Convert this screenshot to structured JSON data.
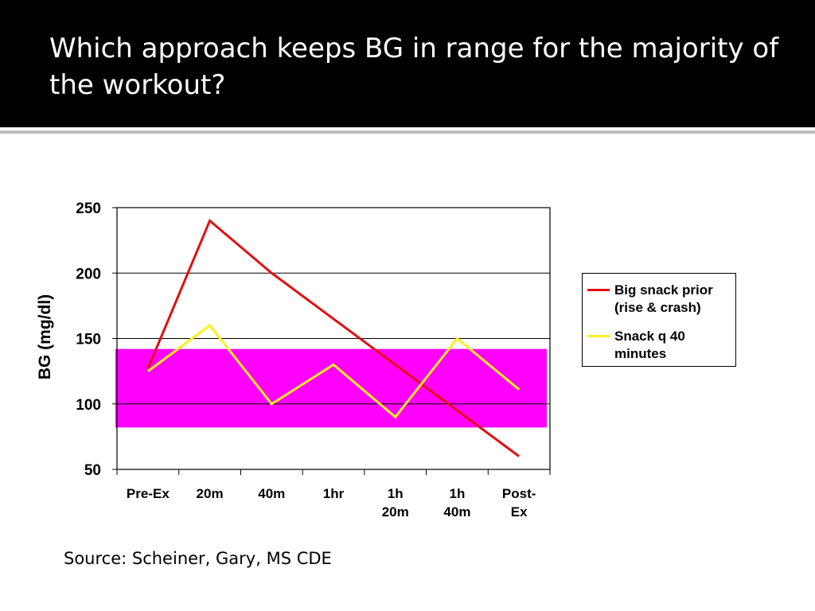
{
  "slide": {
    "title": "Which approach keeps BG in range for the majority of the workout?",
    "source": "Source:  Scheiner, Gary, MS CDE"
  },
  "chart_data": {
    "type": "line",
    "title": "",
    "xlabel": "",
    "ylabel": "BG (mg/dl)",
    "ylim": [
      50,
      250
    ],
    "yticks": [
      50,
      100,
      150,
      200,
      250
    ],
    "grid": true,
    "legend_position": "right",
    "categories": [
      [
        "Pre-Ex"
      ],
      [
        "20m"
      ],
      [
        "40m"
      ],
      [
        "1hr"
      ],
      [
        "1h",
        "20m"
      ],
      [
        "1h",
        "40m"
      ],
      [
        "Post-",
        "Ex"
      ]
    ],
    "target_range": {
      "low": 82,
      "high": 142,
      "color": "#ff00ff"
    },
    "series": [
      {
        "name": "Big snack prior (rise & crash)",
        "color": "#e01010",
        "values": [
          127,
          240,
          200,
          165,
          130,
          95,
          60
        ]
      },
      {
        "name": "Snack q 40 minutes",
        "color": "#ffee22",
        "values": [
          125,
          160,
          100,
          130,
          90,
          150,
          111
        ]
      }
    ]
  }
}
